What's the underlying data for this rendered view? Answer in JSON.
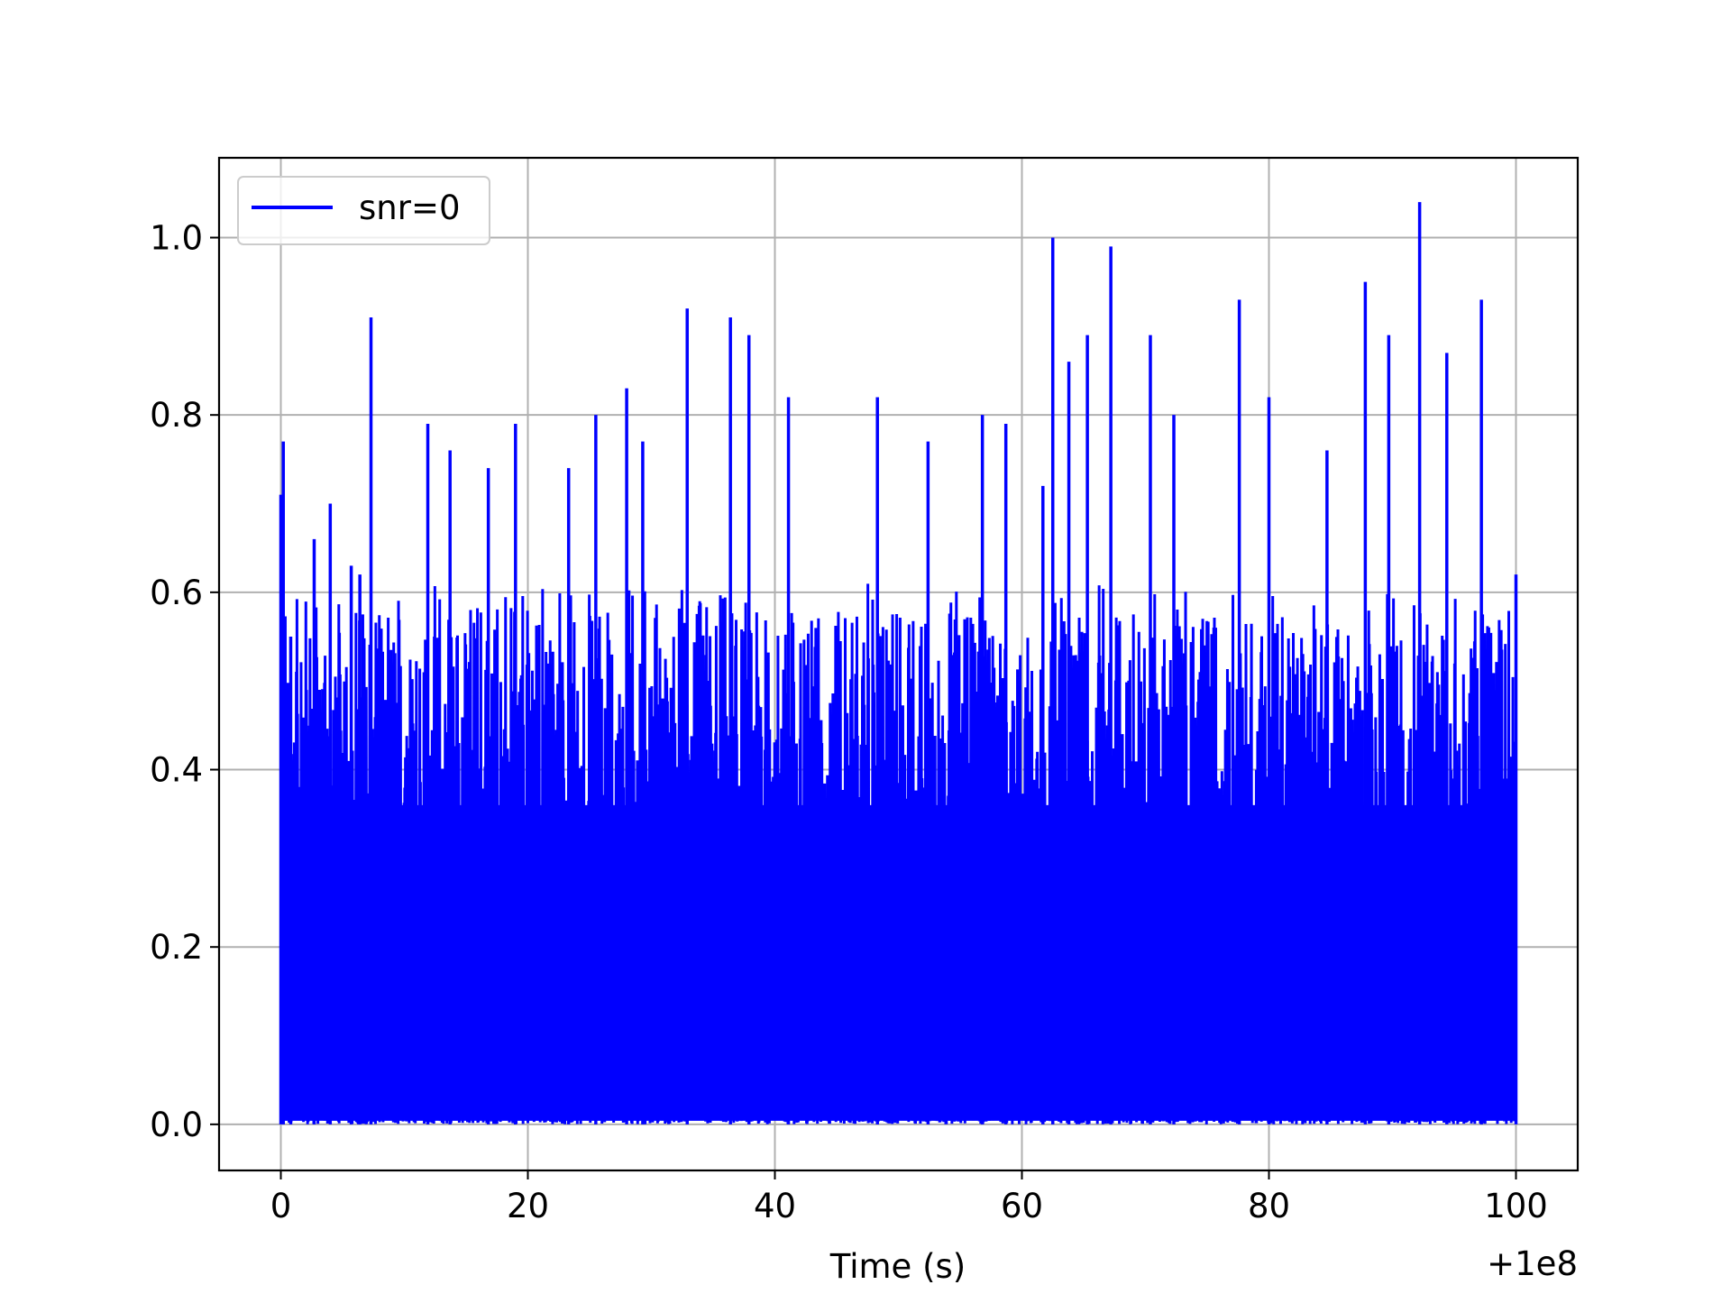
{
  "chart_data": {
    "type": "line",
    "title": "",
    "xlabel": "Time (s)",
    "ylabel": "",
    "x_offset_text": "+1e8",
    "xlim": [
      -5,
      105
    ],
    "ylim": [
      -0.052,
      1.09
    ],
    "x_ticks": [
      0,
      20,
      40,
      60,
      80,
      100
    ],
    "x_tick_labels": [
      "0",
      "20",
      "40",
      "60",
      "80",
      "100"
    ],
    "y_ticks": [
      0.0,
      0.2,
      0.4,
      0.6,
      0.8,
      1.0
    ],
    "y_tick_labels": [
      "0.0",
      "0.2",
      "0.4",
      "0.6",
      "0.8",
      "1.0"
    ],
    "grid": true,
    "legend": {
      "position": "upper-left",
      "entries": [
        "snr=0"
      ]
    },
    "series": [
      {
        "name": "snr=0",
        "color": "#0000ff",
        "x_range": [
          0,
          100
        ],
        "value_range": [
          0.0,
          1.04
        ],
        "peaks": [
          {
            "x": 0.0,
            "y": 0.71
          },
          {
            "x": 0.2,
            "y": 0.77
          },
          {
            "x": 0.8,
            "y": 0.55
          },
          {
            "x": 2.7,
            "y": 0.66
          },
          {
            "x": 4.0,
            "y": 0.7
          },
          {
            "x": 5.7,
            "y": 0.63
          },
          {
            "x": 6.4,
            "y": 0.62
          },
          {
            "x": 7.3,
            "y": 0.91
          },
          {
            "x": 11.9,
            "y": 0.79
          },
          {
            "x": 13.7,
            "y": 0.76
          },
          {
            "x": 16.8,
            "y": 0.74
          },
          {
            "x": 19.0,
            "y": 0.79
          },
          {
            "x": 23.3,
            "y": 0.74
          },
          {
            "x": 25.5,
            "y": 0.8
          },
          {
            "x": 28.0,
            "y": 0.83
          },
          {
            "x": 29.3,
            "y": 0.77
          },
          {
            "x": 32.9,
            "y": 0.92
          },
          {
            "x": 36.4,
            "y": 0.91
          },
          {
            "x": 37.9,
            "y": 0.89
          },
          {
            "x": 41.1,
            "y": 0.82
          },
          {
            "x": 48.3,
            "y": 0.82
          },
          {
            "x": 52.4,
            "y": 0.77
          },
          {
            "x": 56.8,
            "y": 0.8
          },
          {
            "x": 58.7,
            "y": 0.79
          },
          {
            "x": 61.7,
            "y": 0.72
          },
          {
            "x": 62.5,
            "y": 1.0
          },
          {
            "x": 63.8,
            "y": 0.86
          },
          {
            "x": 65.3,
            "y": 0.89
          },
          {
            "x": 67.2,
            "y": 0.99
          },
          {
            "x": 70.4,
            "y": 0.89
          },
          {
            "x": 72.3,
            "y": 0.8
          },
          {
            "x": 77.6,
            "y": 0.93
          },
          {
            "x": 80.0,
            "y": 0.82
          },
          {
            "x": 84.7,
            "y": 0.76
          },
          {
            "x": 87.8,
            "y": 0.95
          },
          {
            "x": 89.7,
            "y": 0.89
          },
          {
            "x": 92.2,
            "y": 1.04
          },
          {
            "x": 94.4,
            "y": 0.87
          },
          {
            "x": 97.2,
            "y": 0.93
          },
          {
            "x": 100.0,
            "y": 0.62
          }
        ]
      }
    ]
  }
}
